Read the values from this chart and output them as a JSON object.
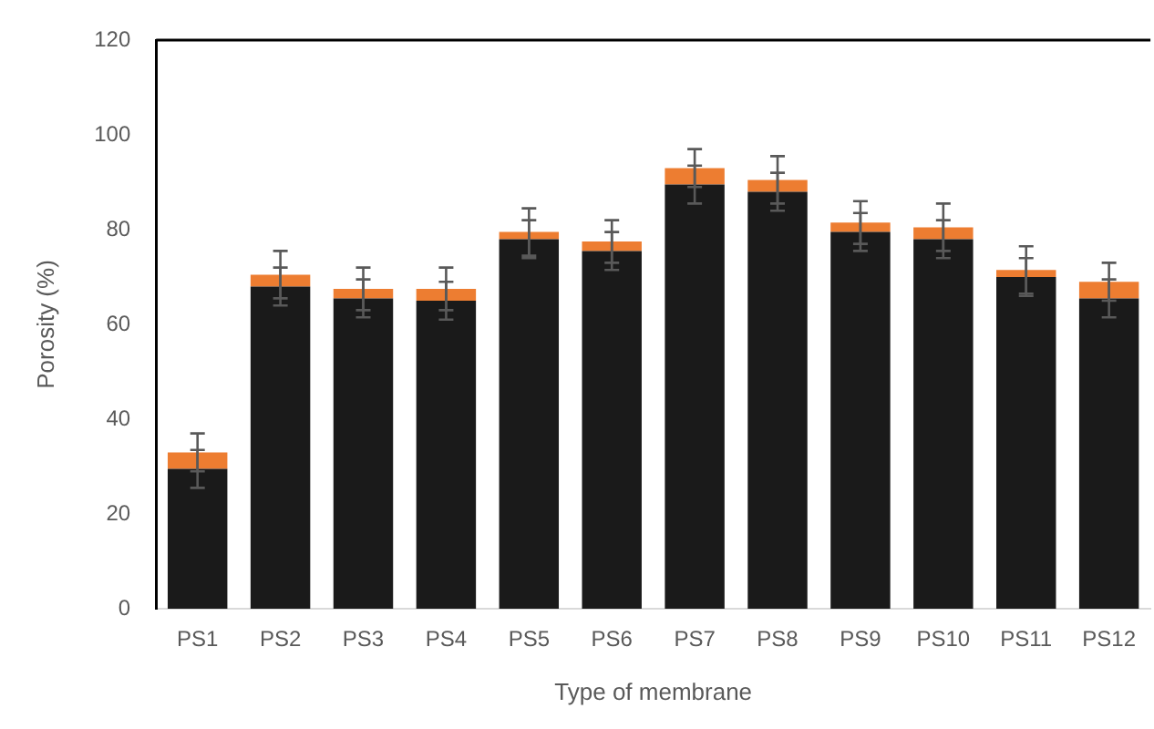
{
  "chart_data": {
    "type": "bar",
    "stacked": true,
    "xlabel": "Type of membrane",
    "ylabel": "Porosity (%)",
    "categories": [
      "PS1",
      "PS2",
      "PS3",
      "PS4",
      "PS5",
      "PS6",
      "PS7",
      "PS8",
      "PS9",
      "PS10",
      "PS11",
      "PS12"
    ],
    "series": [
      {
        "color": "#1a1a1a",
        "values": [
          29.5,
          68,
          65.5,
          65,
          78,
          75.5,
          89.5,
          88,
          79.5,
          78,
          70,
          65.5
        ],
        "errors": [
          4,
          4,
          4,
          4,
          4,
          4,
          4,
          4,
          4,
          4,
          4,
          4
        ]
      },
      {
        "color": "#ed7d31",
        "values": [
          3.5,
          2.5,
          2,
          2.5,
          1.5,
          2,
          3.5,
          2.5,
          2,
          2.5,
          1.5,
          3.5
        ],
        "errors": [
          4,
          5,
          4.5,
          4.5,
          5,
          4.5,
          4,
          5,
          4.5,
          5,
          5,
          4
        ]
      }
    ],
    "ylim": [
      0,
      120
    ],
    "yticks": [
      0,
      20,
      40,
      60,
      80,
      100,
      120
    ],
    "grid": false,
    "legend": false
  }
}
